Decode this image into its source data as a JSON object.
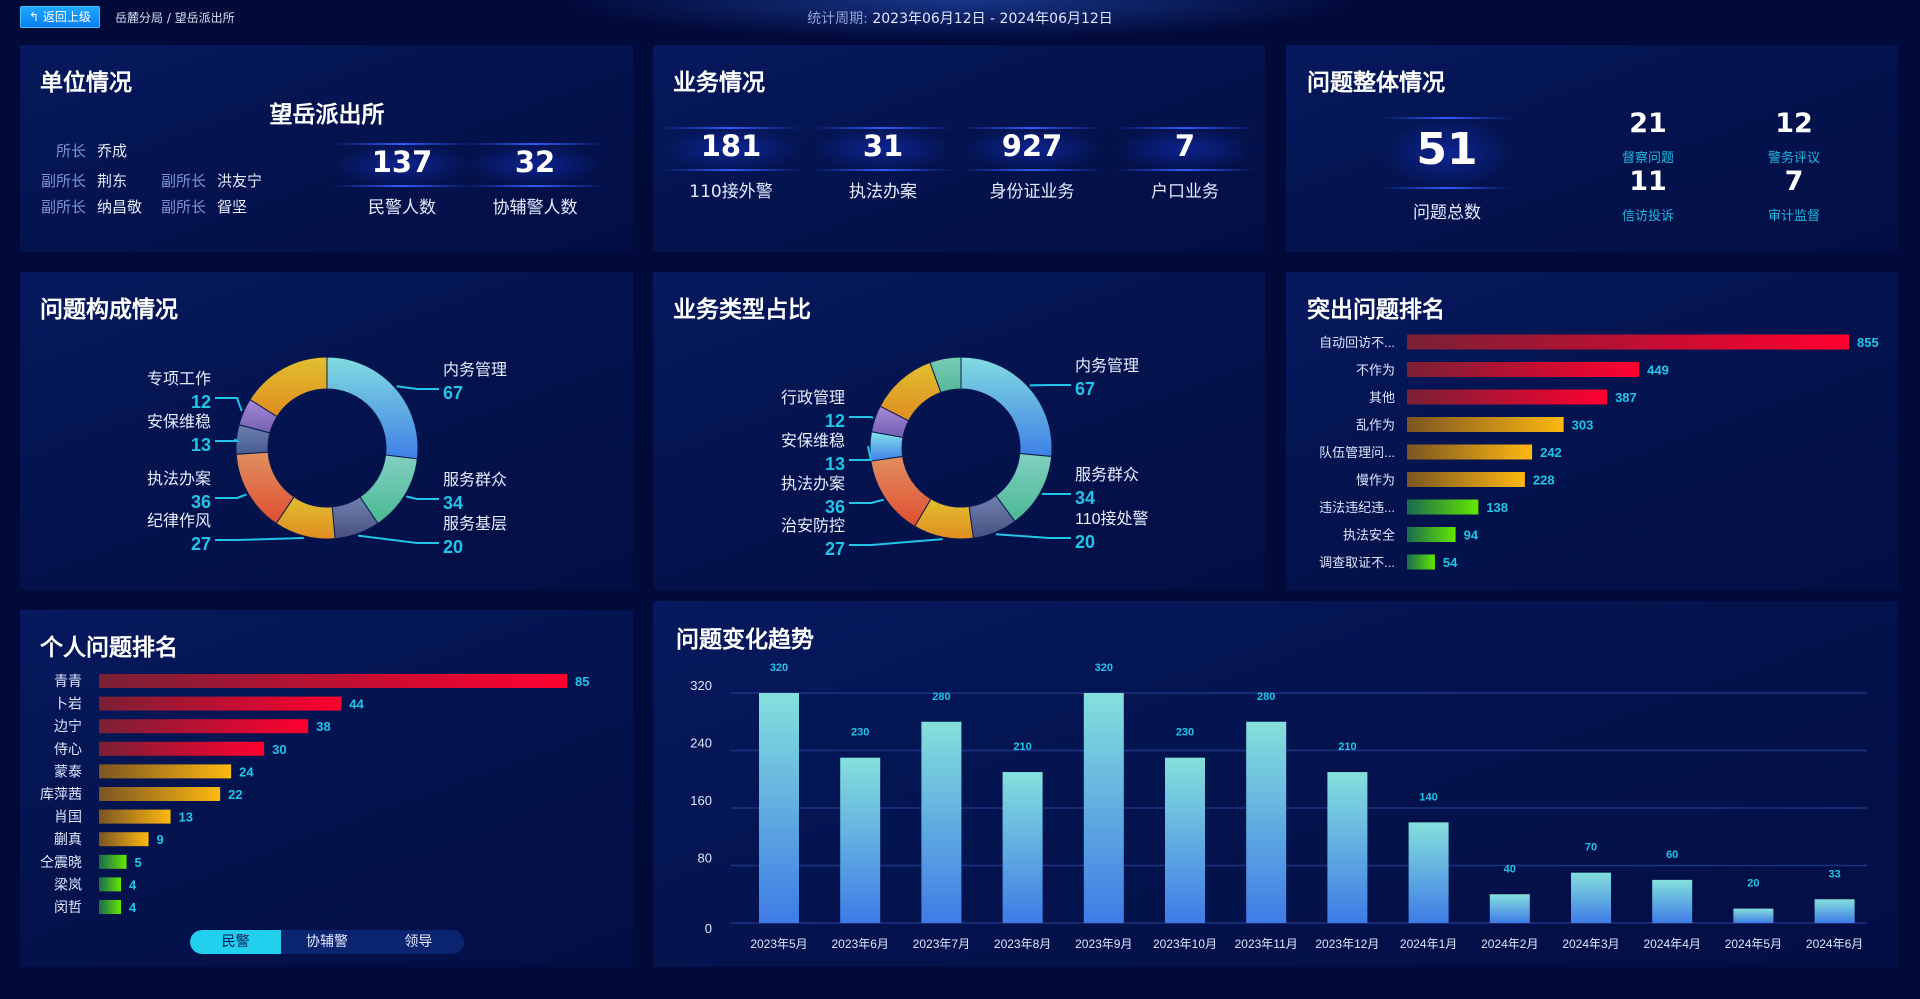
{
  "header": {
    "back_label": "返回上级",
    "back_icon": "return-arrow-icon",
    "breadcrumb": "岳麓分局 / 望岳派出所",
    "period_label": "统计周期:",
    "period_value": "2023年06月12日 - 2024年06月12日"
  },
  "unit": {
    "title": "单位情况",
    "station": "望岳派出所",
    "leaders": [
      {
        "role": "所长",
        "name": "乔成"
      },
      {
        "role": "副所长",
        "name": "荆东"
      },
      {
        "role": "副所长",
        "name": "洪友宁"
      },
      {
        "role": "副所长",
        "name": "纳昌敬"
      },
      {
        "role": "副所长",
        "name": "眢坚"
      }
    ],
    "stats": [
      {
        "value": "137",
        "label": "民警人数"
      },
      {
        "value": "32",
        "label": "协辅警人数"
      }
    ]
  },
  "business": {
    "title": "业务情况",
    "stats": [
      {
        "value": "181",
        "label": "110接外警"
      },
      {
        "value": "31",
        "label": "执法办案"
      },
      {
        "value": "927",
        "label": "身份证业务"
      },
      {
        "value": "7",
        "label": "户口业务"
      }
    ]
  },
  "overall": {
    "title": "问题整体情况",
    "total": {
      "value": "51",
      "label": "问题总数"
    },
    "items": [
      {
        "value": "21",
        "label": "督察问题"
      },
      {
        "value": "12",
        "label": "警务评议"
      },
      {
        "value": "11",
        "label": "信访投诉"
      },
      {
        "value": "7",
        "label": "审计监督"
      }
    ]
  },
  "panels": {
    "composition": "问题构成情况",
    "business_type": "业务类型占比",
    "top_issues": "突出问题排名",
    "personal": "个人问题排名",
    "trend": "问题变化趋势"
  },
  "toggle": {
    "options": [
      "民警",
      "协辅警",
      "领导"
    ],
    "active": "民警"
  },
  "colors": {
    "accent": "#22c4e8",
    "red": "#ff0030",
    "orange": "#ffb810",
    "green": "#60e800",
    "bar_blue_top": "#84e0dc",
    "bar_blue_bottom": "#3f7be6"
  },
  "chart_data": [
    {
      "type": "pie",
      "variant": "donut",
      "title": "问题构成情况",
      "slices": [
        {
          "name": "内务管理",
          "value": 67
        },
        {
          "name": "服务群众",
          "value": 34
        },
        {
          "name": "服务基层",
          "value": 20
        },
        {
          "name": "纪律作风",
          "value": 27
        },
        {
          "name": "执法办案",
          "value": 36
        },
        {
          "name": "安保维稳",
          "value": 13
        },
        {
          "name": "专项工作",
          "value": 12
        },
        {
          "name": "",
          "value": 40
        }
      ]
    },
    {
      "type": "pie",
      "variant": "donut",
      "title": "业务类型占比",
      "slices": [
        {
          "name": "内务管理",
          "value": 67
        },
        {
          "name": "服务群众",
          "value": 34
        },
        {
          "name": "110接处警",
          "value": 20
        },
        {
          "name": "治安防控",
          "value": 27
        },
        {
          "name": "执法办案",
          "value": 36
        },
        {
          "name": "安保维稳",
          "value": 13
        },
        {
          "name": "行政管理",
          "value": 12
        },
        {
          "name": "",
          "value": 30
        },
        {
          "name": "",
          "value": 14
        }
      ]
    },
    {
      "type": "bar",
      "orientation": "horizontal",
      "title": "突出问题排名",
      "categories": [
        "自动回访不...",
        "不作为",
        "其他",
        "乱作为",
        "队伍管理问...",
        "慢作为",
        "违法违纪违...",
        "执法安全",
        "调查取证不..."
      ],
      "values": [
        855,
        449,
        387,
        303,
        242,
        228,
        138,
        94,
        54
      ]
    },
    {
      "type": "bar",
      "orientation": "horizontal",
      "title": "个人问题排名",
      "categories": [
        "青青",
        "卜岩",
        "边宁",
        "侍心",
        "蒙泰",
        "库萍茜",
        "肖国",
        "蒯真",
        "仝震晓",
        "梁岚",
        "闵哲"
      ],
      "values": [
        85,
        44,
        38,
        30,
        24,
        22,
        13,
        9,
        5,
        4,
        4
      ]
    },
    {
      "type": "bar",
      "title": "问题变化趋势",
      "categories": [
        "2023年5月",
        "2023年6月",
        "2023年7月",
        "2023年8月",
        "2023年9月",
        "2023年10月",
        "2023年11月",
        "2023年12月",
        "2024年1月",
        "2024年2月",
        "2024年3月",
        "2024年4月",
        "2024年5月",
        "2024年6月"
      ],
      "values": [
        320,
        230,
        280,
        210,
        320,
        230,
        280,
        210,
        140,
        40,
        70,
        60,
        20,
        33
      ],
      "yticks": [
        0,
        80,
        160,
        240,
        320
      ],
      "ylim": [
        0,
        320
      ],
      "grid": true
    }
  ]
}
